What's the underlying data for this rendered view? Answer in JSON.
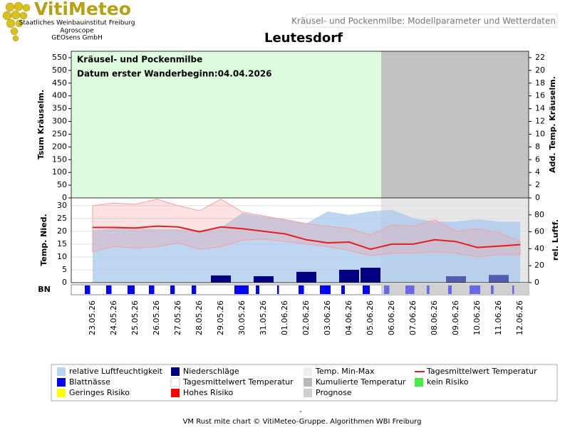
{
  "header": {
    "brand": "VitiMeteo",
    "lines": [
      "Staatliches Weinbauinstitut Freiburg",
      "Agroscope",
      "GEOsens GmbH"
    ],
    "subtitle": "Kräusel- und Pockenmilbe: Modellparameter und Wetterdaten"
  },
  "chart_data": {
    "type": "combo",
    "title": "Leutesdorf",
    "categories": [
      "23.05.26",
      "24.05.26",
      "25.05.26",
      "26.05.26",
      "27.05.26",
      "28.05.26",
      "29.05.26",
      "30.05.26",
      "31.05.26",
      "01.06.26",
      "02.06.26",
      "03.06.26",
      "04.06.26",
      "05.06.26",
      "06.06.26",
      "07.06.26",
      "08.06.26",
      "09.06.26",
      "10.06.26",
      "11.06.26",
      "12.06.26"
    ],
    "forecast_from": "06.06.26",
    "upper": {
      "ylabel": "Tsum Kräuselm.",
      "y2label": "Add. Temp. Kräuselm.",
      "ylim": [
        0,
        575
      ],
      "yticks": [
        0,
        50,
        100,
        150,
        200,
        250,
        300,
        350,
        400,
        450,
        500,
        550
      ],
      "y2lim": [
        0,
        23
      ],
      "y2ticks": [
        0,
        2,
        4,
        6,
        8,
        10,
        12,
        14,
        16,
        18,
        20,
        22
      ],
      "annotations": [
        "Kräusel- und Pockenmilbe",
        "Datum  erster Wanderbeginn:04.04.2026"
      ]
    },
    "lower": {
      "ylabel": "Temp. Nied.",
      "y2label": "rel. Luftf.",
      "ylim": [
        0,
        33
      ],
      "yticks": [
        0,
        5,
        10,
        15,
        20,
        25,
        30
      ],
      "y2lim": [
        0,
        100
      ],
      "y2ticks": [
        0,
        20,
        40,
        60,
        80
      ]
    },
    "bn_label": "BN",
    "series": [
      {
        "name": "relative Luftfeuchtigkeit",
        "color": "#a8c8ec",
        "axis": "y2",
        "values": [
          62,
          64,
          65,
          63,
          63,
          62,
          65,
          82,
          78,
          75,
          70,
          84,
          80,
          84,
          86,
          76,
          72,
          72,
          75,
          72,
          72
        ]
      },
      {
        "name": "Niederschläge",
        "color": "#000080",
        "values": [
          0,
          0,
          0,
          0,
          0,
          0,
          2.8,
          0,
          2.5,
          0,
          4.2,
          0,
          5,
          5.8,
          0,
          0,
          0,
          2.5,
          0,
          3,
          0
        ]
      },
      {
        "name": "Temp. Min-Max",
        "color": "#eeeeee",
        "band_color": "#f4a0a0",
        "max": [
          30,
          31,
          30.5,
          32.5,
          30,
          28,
          32.5,
          27.5,
          26,
          24.5,
          23,
          22,
          21,
          18.5,
          22.5,
          22,
          24.5,
          20,
          21,
          19.5,
          16
        ],
        "min": [
          12,
          14,
          13.5,
          14,
          15.5,
          13,
          14,
          16.5,
          17,
          16,
          15,
          14,
          12.5,
          10.5,
          11.5,
          11.5,
          12,
          11.5,
          10,
          11,
          11
        ]
      },
      {
        "name": "Tagesmittelwert Temperatur",
        "color": "#e02020",
        "values": [
          21.5,
          21.5,
          21.3,
          22,
          21.7,
          19.8,
          21.7,
          21,
          20,
          19,
          16.7,
          15.5,
          15.8,
          13,
          15,
          15,
          16.7,
          16,
          13.7,
          14.2,
          14.8
        ]
      },
      {
        "name": "Blattnässe",
        "color": "#0000ff",
        "values": [
          6,
          6,
          8,
          6,
          5,
          5,
          0,
          16,
          4,
          2,
          6,
          12,
          4,
          8,
          6,
          10,
          3,
          4,
          12,
          3,
          2
        ]
      }
    ],
    "legend_items": [
      {
        "name": "Tagesmittelwert Temperatur",
        "color": "#ffffff"
      },
      {
        "name": "Kumulierte Temperatur",
        "color": "#b8b8b8"
      },
      {
        "name": "kein Risiko",
        "color": "#44ee44"
      },
      {
        "name": "Geringes Risiko",
        "color": "#ffff00"
      },
      {
        "name": "Hohes Risiko",
        "color": "#ff0000"
      },
      {
        "name": "Prognose",
        "color": "#d0d0d0"
      }
    ]
  },
  "footer": {
    "dash": "-",
    "credit": "VM Rust mite chart © VitiMeteo-Gruppe. Algorithmen WBI Freiburg"
  }
}
